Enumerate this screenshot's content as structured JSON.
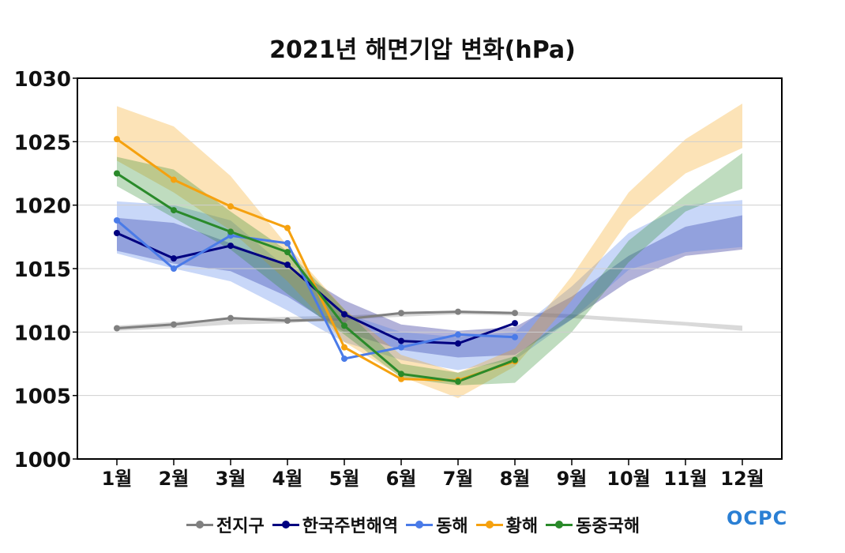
{
  "chart_data": {
    "type": "line",
    "title": "2021년 해면기압 변화(hPa)",
    "categories": [
      "1월",
      "2월",
      "3월",
      "4월",
      "5월",
      "6월",
      "7월",
      "8월",
      "9월",
      "10월",
      "11월",
      "12월"
    ],
    "ylim": [
      1000,
      1030
    ],
    "yticks": [
      1000,
      1005,
      1010,
      1015,
      1020,
      1025,
      1030
    ],
    "grid": true,
    "legend_position": "bottom",
    "series": [
      {
        "name": "전지구",
        "color": "#808080",
        "values": [
          1010.3,
          1010.6,
          1011.1,
          1010.9,
          1011.0,
          1011.5,
          1011.6,
          1011.5,
          null,
          null,
          null,
          null
        ],
        "band_lower": [
          1010.1,
          1010.3,
          1010.6,
          1010.7,
          1011.0,
          1011.2,
          1011.4,
          1011.3,
          1011.1,
          1010.8,
          1010.5,
          1010.1
        ],
        "band_upper": [
          1010.5,
          1010.8,
          1011.1,
          1011.2,
          1011.3,
          1011.5,
          1011.7,
          1011.6,
          1011.4,
          1011.1,
          1010.8,
          1010.5
        ]
      },
      {
        "name": "한국주변해역",
        "color": "#000080",
        "values": [
          1017.8,
          1015.8,
          1016.8,
          1015.3,
          1011.4,
          1009.3,
          1009.1,
          1010.7,
          null,
          null,
          null,
          null
        ],
        "band_lower": [
          1016.4,
          1015.4,
          1014.8,
          1012.8,
          1010.0,
          1008.6,
          1008.0,
          1008.2,
          1011.0,
          1014.0,
          1016.0,
          1016.5
        ],
        "band_upper": [
          1019.0,
          1018.6,
          1017.0,
          1015.2,
          1012.5,
          1010.6,
          1010.1,
          1010.4,
          1012.8,
          1016.0,
          1018.3,
          1019.2
        ]
      },
      {
        "name": "동해",
        "color": "#4a7be8",
        "values": [
          1018.8,
          1015.0,
          1017.6,
          1017.0,
          1007.9,
          1008.8,
          1009.8,
          1009.6,
          null,
          null,
          null,
          null
        ],
        "band_lower": [
          1016.2,
          1015.0,
          1014.0,
          1011.7,
          1009.2,
          1007.8,
          1007.0,
          1007.8,
          1011.0,
          1014.9,
          1016.3,
          1016.7
        ],
        "band_upper": [
          1020.3,
          1020.0,
          1018.8,
          1015.0,
          1011.5,
          1010.0,
          1009.6,
          1010.0,
          1013.6,
          1017.8,
          1020.0,
          1020.4
        ]
      },
      {
        "name": "황해",
        "color": "#f5a10f",
        "values": [
          1025.2,
          1022.0,
          1019.9,
          1018.2,
          1008.8,
          1006.3,
          1006.2,
          1007.7,
          null,
          null,
          null,
          null
        ],
        "band_lower": [
          1023.5,
          1021.0,
          1018.0,
          1014.0,
          1009.2,
          1006.5,
          1004.8,
          1007.3,
          1012.5,
          1018.8,
          1022.5,
          1024.5
        ],
        "band_upper": [
          1027.8,
          1026.2,
          1022.3,
          1016.8,
          1011.8,
          1008.2,
          1006.8,
          1008.7,
          1014.4,
          1021.0,
          1025.2,
          1028.0
        ]
      },
      {
        "name": "동중국해",
        "color": "#2a8a2a",
        "values": [
          1022.5,
          1019.6,
          1017.9,
          1016.3,
          1010.5,
          1006.7,
          1006.1,
          1007.8,
          null,
          null,
          null,
          null
        ],
        "band_lower": [
          1021.5,
          1019.0,
          1016.5,
          1013.0,
          1009.8,
          1006.4,
          1005.8,
          1006.0,
          1010.0,
          1015.5,
          1019.5,
          1021.3
        ],
        "band_upper": [
          1023.8,
          1022.8,
          1019.5,
          1016.4,
          1011.8,
          1007.5,
          1006.8,
          1008.1,
          1011.5,
          1017.2,
          1020.8,
          1024.1
        ]
      }
    ]
  },
  "logo_text": "OCPC"
}
